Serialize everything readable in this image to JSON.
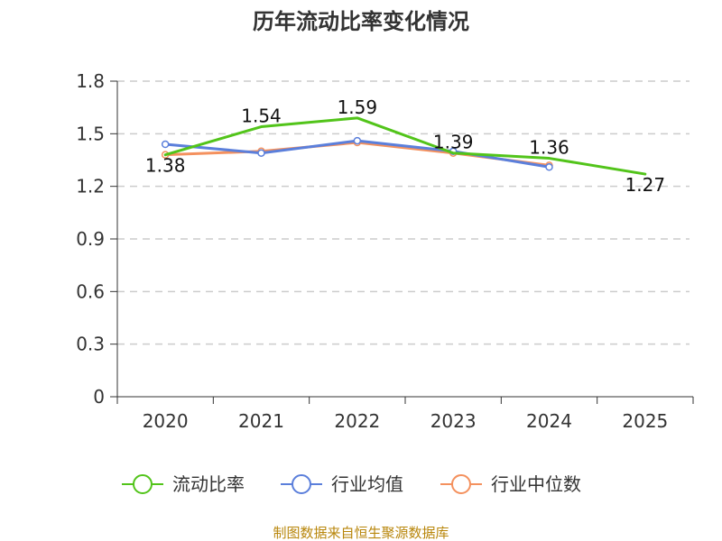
{
  "chart_data": {
    "type": "line",
    "title": "历年流动比率变化情况",
    "categories": [
      "2020",
      "2021",
      "2022",
      "2023",
      "2024",
      "2025"
    ],
    "yticks": [
      "0",
      "0.3",
      "0.6",
      "0.9",
      "1.2",
      "1.5",
      "1.8"
    ],
    "ylim": [
      0,
      1.8
    ],
    "grid": true,
    "legend_position": "bottom",
    "series": [
      {
        "name": "流动比率",
        "color": "#52c41a",
        "values": [
          1.38,
          1.54,
          1.59,
          1.39,
          1.36,
          1.27
        ],
        "labels": [
          "1.38",
          "1.54",
          "1.59",
          "1.39",
          "1.36",
          "1.27"
        ],
        "marker": "none"
      },
      {
        "name": "行业均值",
        "color": "#5b7fdb",
        "values": [
          1.44,
          1.39,
          1.46,
          1.4,
          1.31,
          null
        ],
        "marker": "circle"
      },
      {
        "name": "行业中位数",
        "color": "#f4915e",
        "values": [
          1.38,
          1.4,
          1.45,
          1.39,
          1.32,
          null
        ],
        "marker": "circle"
      }
    ],
    "source": "制图数据来自恒生聚源数据库"
  }
}
